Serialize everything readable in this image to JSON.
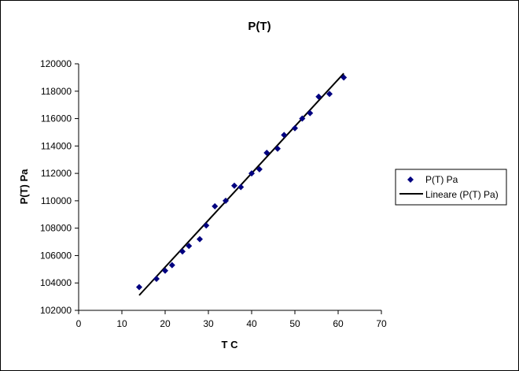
{
  "chart_data": {
    "type": "scatter",
    "title": "P(T)",
    "xlabel": "T C",
    "ylabel": "P(T)  Pa",
    "xlim": [
      0,
      70
    ],
    "ylim": [
      102000,
      120000
    ],
    "xticks": [
      0,
      10,
      20,
      30,
      40,
      50,
      60,
      70
    ],
    "yticks": [
      102000,
      104000,
      106000,
      108000,
      110000,
      112000,
      114000,
      116000,
      118000,
      120000
    ],
    "grid": false,
    "legend_position": "right",
    "series": [
      {
        "name": "P(T) Pa",
        "kind": "markers",
        "marker": "diamond",
        "color": "#000080",
        "x": [
          14,
          18,
          20,
          21.6,
          24,
          25.5,
          28,
          29.5,
          31.5,
          34,
          36,
          37.5,
          40,
          41.8,
          43.5,
          46,
          47.5,
          50,
          51.7,
          53.5,
          55.5,
          58,
          61.3
        ],
        "y": [
          103700,
          104300,
          104900,
          105300,
          106300,
          106700,
          107200,
          108200,
          109600,
          110000,
          111100,
          111000,
          112000,
          112300,
          113500,
          113800,
          114800,
          115300,
          116000,
          116400,
          117600,
          117800,
          119000
        ]
      },
      {
        "name": "Lineare (P(T) Pa)",
        "kind": "line",
        "color": "#000000",
        "x": [
          14,
          61.3
        ],
        "y": [
          103100,
          119300
        ]
      }
    ]
  }
}
